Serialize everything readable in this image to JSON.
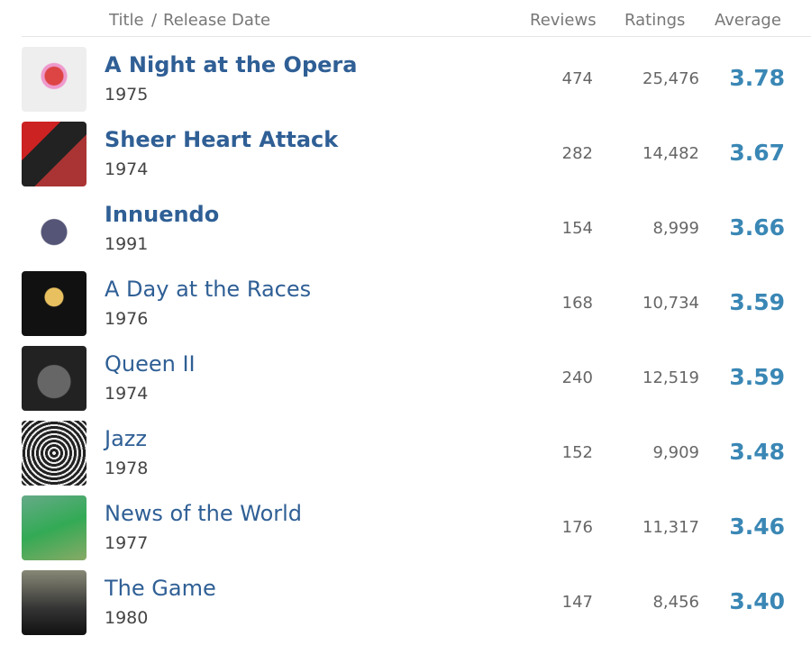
{
  "header": {
    "title": "Title",
    "separator": "/",
    "release_date": "Release Date",
    "reviews": "Reviews",
    "ratings": "Ratings",
    "average": "Average"
  },
  "table": {
    "rows": [
      [
        "A Night at the Opera",
        "1975",
        "474",
        "25,476",
        "3.78"
      ],
      [
        "Sheer Heart Attack",
        "1974",
        "282",
        "14,482",
        "3.67"
      ],
      [
        "Innuendo",
        "1991",
        "154",
        "8,999",
        "3.66"
      ],
      [
        "A Day at the Races",
        "1976",
        "168",
        "10,734",
        "3.59"
      ],
      [
        "Queen II",
        "1974",
        "240",
        "12,519",
        "3.59"
      ],
      [
        "Jazz",
        "1978",
        "152",
        "9,909",
        "3.48"
      ],
      [
        "News of the World",
        "1977",
        "176",
        "11,317",
        "3.46"
      ],
      [
        "The Game",
        "1980",
        "147",
        "8,456",
        "3.40"
      ]
    ]
  }
}
